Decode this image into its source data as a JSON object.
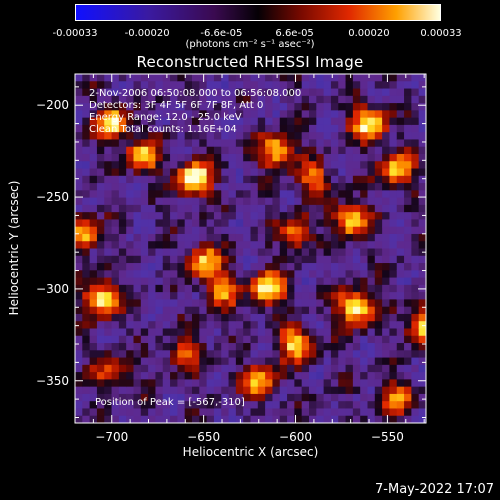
{
  "colorbar": {
    "ticks": [
      "-0.00033",
      "-0.00020",
      "-6.6e-05",
      "6.6e-05",
      "0.00020",
      "0.00033"
    ],
    "tick_values": [
      -0.00033,
      -0.0002,
      -6.6e-05,
      6.6e-05,
      0.0002,
      0.00033
    ],
    "range": [
      -0.00033,
      0.00033
    ],
    "units": "(photons cm⁻² s⁻¹ asec⁻²)"
  },
  "annotations": {
    "time_range": "2-Nov-2006 06:50:08.000 to 06:56:08.000",
    "detectors": "Detectors: 3F 4F 5F 6F 7F 8F, Att 0",
    "energy": "Energy Range: 12.0 - 25.0 keV",
    "method": "Clean    Total counts: 1.16E+04",
    "peak": "Position of Peak = [-567,-310]"
  },
  "footer": "7-May-2022 17:07",
  "colors": {
    "background": "#000000",
    "axis": "#ffffff"
  },
  "chart_data": {
    "type": "heatmap",
    "title": "Reconstructed RHESSI Image",
    "xlabel": "Heliocentric X (arcsec)",
    "ylabel": "Heliocentric Y (arcsec)",
    "xlim": [
      -720,
      -529
    ],
    "ylim": [
      -373,
      -183
    ],
    "xticks": [
      -700,
      -650,
      -600,
      -550
    ],
    "xtick_labels": [
      "−700",
      "−650",
      "−600",
      "−550"
    ],
    "yticks": [
      -200,
      -250,
      -300,
      -350
    ],
    "ytick_labels": [
      "−200",
      "−250",
      "−300",
      "−350"
    ],
    "colormap": "rainbow-ish (blue-purple-red-orange-yellow-white)",
    "peak_position": [
      -567,
      -310
    ],
    "grid_cells": [
      48,
      48
    ],
    "sources": [
      {
        "x": -655,
        "y": -240,
        "intensity": 1.0
      },
      {
        "x": -700,
        "y": -210,
        "intensity": 0.85
      },
      {
        "x": -683,
        "y": -228,
        "intensity": 0.75
      },
      {
        "x": -610,
        "y": -225,
        "intensity": 0.8
      },
      {
        "x": -560,
        "y": -210,
        "intensity": 0.9
      },
      {
        "x": -545,
        "y": -235,
        "intensity": 0.75
      },
      {
        "x": -570,
        "y": -262,
        "intensity": 0.85
      },
      {
        "x": -705,
        "y": -305,
        "intensity": 0.95
      },
      {
        "x": -715,
        "y": -270,
        "intensity": 0.7
      },
      {
        "x": -650,
        "y": -285,
        "intensity": 0.75
      },
      {
        "x": -640,
        "y": -300,
        "intensity": 0.7
      },
      {
        "x": -615,
        "y": -300,
        "intensity": 0.9
      },
      {
        "x": -600,
        "y": -330,
        "intensity": 0.8
      },
      {
        "x": -567,
        "y": -310,
        "intensity": 1.0
      },
      {
        "x": -530,
        "y": -320,
        "intensity": 0.85
      },
      {
        "x": -620,
        "y": -350,
        "intensity": 0.7
      },
      {
        "x": -700,
        "y": -345,
        "intensity": 0.55
      },
      {
        "x": -660,
        "y": -335,
        "intensity": 0.5
      },
      {
        "x": -545,
        "y": -360,
        "intensity": 0.6
      },
      {
        "x": -600,
        "y": -270,
        "intensity": 0.6
      },
      {
        "x": -590,
        "y": -240,
        "intensity": 0.55
      }
    ]
  }
}
